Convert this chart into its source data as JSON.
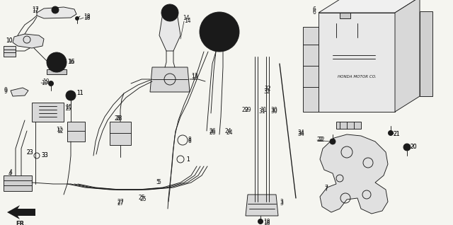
{
  "bg_color": "#f5f5f0",
  "line_color": "#1a1a1a",
  "fig_width": 6.4,
  "fig_height": 3.18,
  "dpi": 100,
  "label_fs": 5.5,
  "lw": 0.65
}
